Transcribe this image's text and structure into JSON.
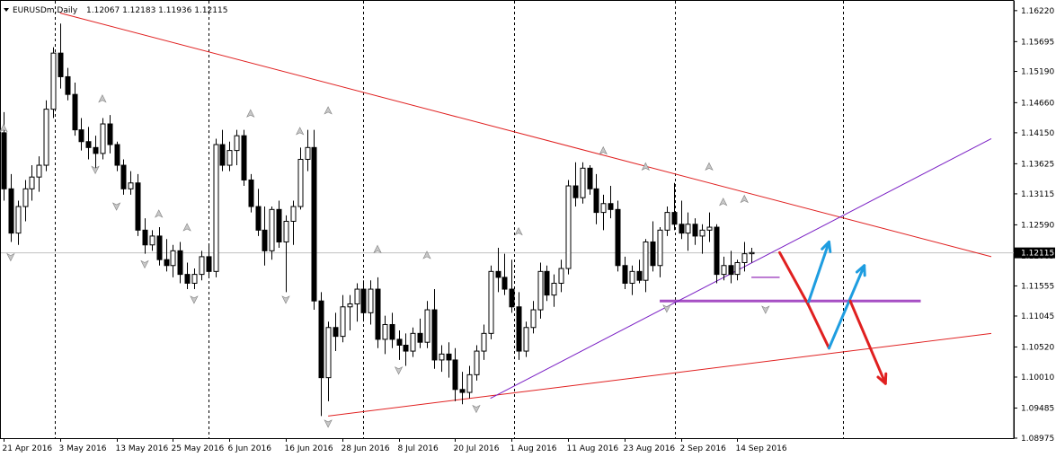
{
  "chart_data": {
    "type": "candlestick",
    "title": "EURUSDm,Daily",
    "ohlc_header": "1.12067 1.12183 1.11936 1.12115",
    "current_price_label": "1.12115",
    "current_price": 1.12115,
    "y_ticks": [
      "1.16220",
      "1.15695",
      "1.15190",
      "1.14660",
      "1.14150",
      "1.13625",
      "1.13115",
      "1.12590",
      "1.12065",
      "1.11555",
      "1.11045",
      "1.10520",
      "1.10010",
      "1.09485",
      "1.08975"
    ],
    "ylim": [
      1.08975,
      1.16385
    ],
    "x_ticks": [
      {
        "label": "21 Apr 2016",
        "index": 0
      },
      {
        "label": "3 May 2016",
        "index": 8
      },
      {
        "label": "13 May 2016",
        "index": 16
      },
      {
        "label": "25 May 2016",
        "index": 24
      },
      {
        "label": "6 Jun 2016",
        "index": 32
      },
      {
        "label": "16 Jun 2016",
        "index": 40
      },
      {
        "label": "28 Jun 2016",
        "index": 48
      },
      {
        "label": "8 Jul 2016",
        "index": 56
      },
      {
        "label": "20 Jul 2016",
        "index": 64
      },
      {
        "label": "1 Aug 2016",
        "index": 72
      },
      {
        "label": "11 Aug 2016",
        "index": 80
      },
      {
        "label": "23 Aug 2016",
        "index": 88
      },
      {
        "label": "2 Sep 2016",
        "index": 96
      },
      {
        "label": "14 Sep 2016",
        "index": 104
      }
    ],
    "period_separators": [
      7.2,
      29,
      51,
      72.3,
      95.2,
      119
    ],
    "candles": [
      [
        1.1415,
        1.145,
        1.13,
        1.132
      ],
      [
        1.132,
        1.1345,
        1.123,
        1.1245
      ],
      [
        1.1245,
        1.13,
        1.1225,
        1.129
      ],
      [
        1.129,
        1.1335,
        1.1265,
        1.132
      ],
      [
        1.132,
        1.136,
        1.13,
        1.134
      ],
      [
        1.134,
        1.1375,
        1.1315,
        1.136
      ],
      [
        1.136,
        1.147,
        1.135,
        1.1455
      ],
      [
        1.1455,
        1.156,
        1.144,
        1.155
      ],
      [
        1.155,
        1.16,
        1.149,
        1.151
      ],
      [
        1.151,
        1.1525,
        1.147,
        1.148
      ],
      [
        1.148,
        1.15,
        1.141,
        1.142
      ],
      [
        1.142,
        1.144,
        1.1385,
        1.14
      ],
      [
        1.14,
        1.1425,
        1.137,
        1.139
      ],
      [
        1.139,
        1.141,
        1.1355,
        1.138
      ],
      [
        1.138,
        1.144,
        1.137,
        1.143
      ],
      [
        1.143,
        1.1445,
        1.138,
        1.1395
      ],
      [
        1.1395,
        1.14,
        1.135,
        1.136
      ],
      [
        1.136,
        1.137,
        1.131,
        1.132
      ],
      [
        1.132,
        1.135,
        1.131,
        1.133
      ],
      [
        1.133,
        1.1345,
        1.124,
        1.125
      ],
      [
        1.125,
        1.127,
        1.121,
        1.1225
      ],
      [
        1.1225,
        1.125,
        1.1215,
        1.124
      ],
      [
        1.124,
        1.1255,
        1.119,
        1.12
      ],
      [
        1.12,
        1.1235,
        1.118,
        1.119
      ],
      [
        1.119,
        1.1225,
        1.117,
        1.1215
      ],
      [
        1.1215,
        1.123,
        1.116,
        1.1175
      ],
      [
        1.1175,
        1.1195,
        1.115,
        1.116
      ],
      [
        1.116,
        1.1185,
        1.115,
        1.1175
      ],
      [
        1.1175,
        1.1215,
        1.1165,
        1.1205
      ],
      [
        1.1205,
        1.1225,
        1.117,
        1.118
      ],
      [
        1.118,
        1.1405,
        1.117,
        1.1395
      ],
      [
        1.1395,
        1.142,
        1.135,
        1.136
      ],
      [
        1.136,
        1.14,
        1.135,
        1.1385
      ],
      [
        1.1385,
        1.142,
        1.136,
        1.141
      ],
      [
        1.141,
        1.142,
        1.1325,
        1.1335
      ],
      [
        1.1335,
        1.1345,
        1.128,
        1.129
      ],
      [
        1.129,
        1.132,
        1.124,
        1.125
      ],
      [
        1.125,
        1.129,
        1.119,
        1.1215
      ],
      [
        1.1215,
        1.129,
        1.12,
        1.1285
      ],
      [
        1.1285,
        1.13,
        1.122,
        1.123
      ],
      [
        1.123,
        1.1275,
        1.1145,
        1.1265
      ],
      [
        1.1265,
        1.13,
        1.1225,
        1.129
      ],
      [
        1.129,
        1.139,
        1.1285,
        1.137
      ],
      [
        1.137,
        1.142,
        1.135,
        1.139
      ],
      [
        1.139,
        1.142,
        1.1115,
        1.113
      ],
      [
        1.113,
        1.1145,
        1.0935,
        1.1
      ],
      [
        1.1,
        1.1095,
        1.096,
        1.1085
      ],
      [
        1.1085,
        1.111,
        1.1045,
        1.107
      ],
      [
        1.107,
        1.114,
        1.106,
        1.112
      ],
      [
        1.112,
        1.114,
        1.108,
        1.1125
      ],
      [
        1.1125,
        1.116,
        1.1095,
        1.115
      ],
      [
        1.115,
        1.1165,
        1.1095,
        1.111
      ],
      [
        1.111,
        1.1165,
        1.109,
        1.115
      ],
      [
        1.115,
        1.117,
        1.105,
        1.1065
      ],
      [
        1.1065,
        1.1105,
        1.104,
        1.109
      ],
      [
        1.109,
        1.111,
        1.105,
        1.1065
      ],
      [
        1.1065,
        1.108,
        1.103,
        1.1055
      ],
      [
        1.1055,
        1.1075,
        1.102,
        1.1045
      ],
      [
        1.1045,
        1.1085,
        1.1035,
        1.1075
      ],
      [
        1.1075,
        1.11,
        1.105,
        1.106
      ],
      [
        1.106,
        1.113,
        1.105,
        1.1115
      ],
      [
        1.1115,
        1.115,
        1.1015,
        1.103
      ],
      [
        1.103,
        1.1055,
        1.101,
        1.104
      ],
      [
        1.104,
        1.106,
        1.1,
        1.103
      ],
      [
        1.103,
        1.105,
        1.096,
        1.098
      ],
      [
        1.098,
        1.101,
        1.0955,
        1.0975
      ],
      [
        1.0975,
        1.102,
        1.0965,
        1.1005
      ],
      [
        1.1005,
        1.1055,
        1.0995,
        1.1045
      ],
      [
        1.1045,
        1.109,
        1.103,
        1.1075
      ],
      [
        1.1075,
        1.119,
        1.1065,
        1.118
      ],
      [
        1.118,
        1.122,
        1.1145,
        1.117
      ],
      [
        1.117,
        1.121,
        1.114,
        1.115
      ],
      [
        1.115,
        1.12,
        1.111,
        1.112
      ],
      [
        1.112,
        1.1145,
        1.103,
        1.1045
      ],
      [
        1.1045,
        1.1095,
        1.1035,
        1.1085
      ],
      [
        1.1085,
        1.113,
        1.1075,
        1.1115
      ],
      [
        1.1115,
        1.1195,
        1.11,
        1.118
      ],
      [
        1.118,
        1.119,
        1.113,
        1.114
      ],
      [
        1.114,
        1.1175,
        1.112,
        1.116
      ],
      [
        1.116,
        1.12,
        1.1145,
        1.1185
      ],
      [
        1.1185,
        1.1335,
        1.1175,
        1.1325
      ],
      [
        1.1325,
        1.1365,
        1.129,
        1.1305
      ],
      [
        1.1305,
        1.1365,
        1.1295,
        1.1355
      ],
      [
        1.1355,
        1.136,
        1.131,
        1.132
      ],
      [
        1.132,
        1.1345,
        1.126,
        1.128
      ],
      [
        1.128,
        1.131,
        1.125,
        1.1295
      ],
      [
        1.1295,
        1.1325,
        1.127,
        1.1285
      ],
      [
        1.1285,
        1.13,
        1.118,
        1.119
      ],
      [
        1.119,
        1.1205,
        1.115,
        1.116
      ],
      [
        1.116,
        1.119,
        1.114,
        1.118
      ],
      [
        1.118,
        1.12,
        1.116,
        1.1165
      ],
      [
        1.1165,
        1.1235,
        1.1145,
        1.123
      ],
      [
        1.123,
        1.1265,
        1.118,
        1.119
      ],
      [
        1.119,
        1.1255,
        1.117,
        1.125
      ],
      [
        1.125,
        1.129,
        1.124,
        1.128
      ],
      [
        1.128,
        1.133,
        1.125,
        1.126
      ],
      [
        1.126,
        1.13,
        1.1235,
        1.1245
      ],
      [
        1.1245,
        1.128,
        1.1215,
        1.126
      ],
      [
        1.126,
        1.127,
        1.1225,
        1.124
      ],
      [
        1.124,
        1.126,
        1.121,
        1.125
      ],
      [
        1.125,
        1.128,
        1.123,
        1.1255
      ],
      [
        1.1255,
        1.126,
        1.116,
        1.1175
      ],
      [
        1.1175,
        1.1205,
        1.1165,
        1.119
      ],
      [
        1.119,
        1.1215,
        1.116,
        1.1175
      ],
      [
        1.1175,
        1.12,
        1.1165,
        1.1195
      ],
      [
        1.1195,
        1.123,
        1.118,
        1.121
      ],
      [
        1.121,
        1.122,
        1.1195,
        1.1212
      ]
    ],
    "trendlines": [
      {
        "name": "upper-resistance",
        "color": "#e02020",
        "from": [
          8,
          1.1618
        ],
        "to": [
          140,
          1.1205
        ]
      },
      {
        "name": "lower-support",
        "color": "#e02020",
        "from": [
          46,
          1.0935
        ],
        "to": [
          140,
          1.1075
        ]
      },
      {
        "name": "rising-channel",
        "color": "#7a1fc4",
        "from": [
          69,
          1.0965
        ],
        "to": [
          140,
          1.1405
        ]
      }
    ],
    "horizontal_levels": [
      {
        "name": "support-level",
        "color": "#a64fc4",
        "value": 1.113,
        "from": 93,
        "to": 130
      },
      {
        "name": "small-support",
        "color": "#a64fc4",
        "value": 1.117,
        "from": 106,
        "to": 110
      },
      {
        "name": "current-price",
        "color": "#c0c0c0",
        "value": 1.12115
      }
    ],
    "projection_arrows": [
      {
        "color": "#e02020",
        "from": [
          110,
          1.1212
        ],
        "to": [
          114,
          1.1125
        ]
      },
      {
        "color": "#1e9de0",
        "from": [
          114,
          1.1125
        ],
        "to": [
          117,
          1.123
        ],
        "head": true
      },
      {
        "color": "#e02020",
        "from": [
          114,
          1.1125
        ],
        "to": [
          117,
          1.105
        ]
      },
      {
        "color": "#1e9de0",
        "from": [
          117,
          1.105
        ],
        "to": [
          122,
          1.119
        ],
        "head": true
      },
      {
        "color": "#e02020",
        "from": [
          120,
          1.113
        ],
        "to": [
          125,
          1.099
        ],
        "head": true
      }
    ],
    "fractals_up": [
      [
        0,
        1.142
      ],
      [
        14,
        1.147
      ],
      [
        22,
        1.1275
      ],
      [
        26,
        1.1252
      ],
      [
        35,
        1.1445
      ],
      [
        42,
        1.1415
      ],
      [
        46,
        1.145
      ],
      [
        53,
        1.1215
      ],
      [
        60,
        1.1205
      ],
      [
        73,
        1.1245
      ],
      [
        85,
        1.1382
      ],
      [
        91,
        1.1355
      ],
      [
        100,
        1.1355
      ],
      [
        102,
        1.1295
      ],
      [
        105,
        1.13
      ]
    ],
    "fractals_down": [
      [
        1,
        1.1207
      ],
      [
        13,
        1.1355
      ],
      [
        16,
        1.1293
      ],
      [
        20,
        1.1195
      ],
      [
        27,
        1.1135
      ],
      [
        40,
        1.1135
      ],
      [
        46,
        1.0925
      ],
      [
        56,
        1.1015
      ],
      [
        67,
        1.095
      ],
      [
        94,
        1.112
      ],
      [
        108,
        1.1118
      ]
    ]
  },
  "colors": {
    "background": "#ffffff",
    "grid": "#000000",
    "bull_candle": "#ffffff",
    "bear_candle": "#000000"
  }
}
